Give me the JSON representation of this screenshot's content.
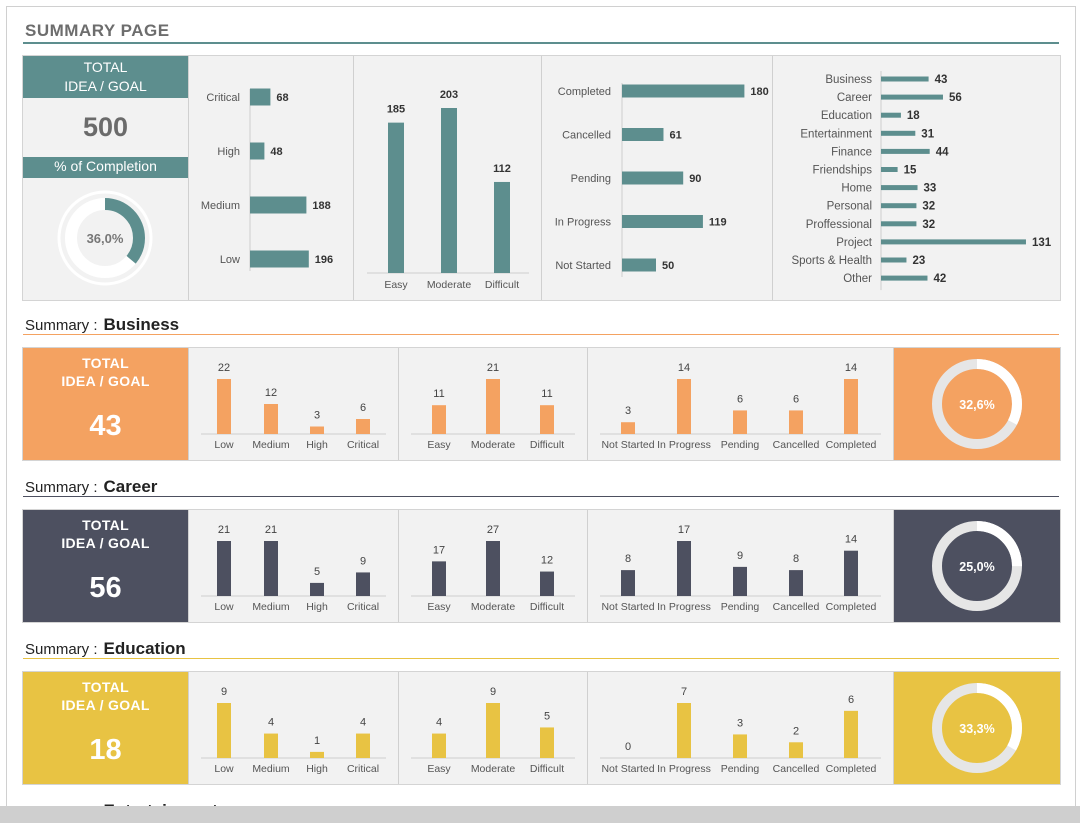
{
  "page_title": "SUMMARY PAGE",
  "overview": {
    "total_label_1": "TOTAL",
    "total_label_2": "IDEA / GOAL",
    "total_value": "500",
    "completion_label": "% of Completion",
    "completion_text": "36,0%",
    "completion_fraction": 0.36
  },
  "summary_prefix": "Summary :",
  "colors": {
    "teal": "#5d8e8e",
    "orange": "#f4a261",
    "slate": "#4d5060",
    "yellow": "#e8c343"
  },
  "chart_data": [
    {
      "type": "bar",
      "orientation": "horizontal",
      "categories": [
        "Critical",
        "High",
        "Medium",
        "Low"
      ],
      "values": [
        68,
        48,
        188,
        196
      ]
    },
    {
      "type": "bar",
      "categories": [
        "Easy",
        "Moderate",
        "Difficult"
      ],
      "values": [
        185,
        203,
        112
      ]
    },
    {
      "type": "bar",
      "orientation": "horizontal",
      "categories": [
        "Completed",
        "Cancelled",
        "Pending",
        "In Progress",
        "Not Started"
      ],
      "values": [
        180,
        61,
        90,
        119,
        50
      ]
    },
    {
      "type": "bar",
      "orientation": "horizontal",
      "categories": [
        "Business",
        "Career",
        "Education",
        "Entertainment",
        "Finance",
        "Friendships",
        "Home",
        "Personal",
        "Proffessional",
        "Project",
        "Sports & Health",
        "Other"
      ],
      "values": [
        43,
        56,
        18,
        31,
        44,
        15,
        33,
        32,
        32,
        131,
        23,
        42
      ]
    }
  ],
  "categories": [
    {
      "name": "Business",
      "total_label_1": "TOTAL",
      "total_label_2": "IDEA / GOAL",
      "total": "43",
      "color": "#f4a261",
      "completion_text": "32,6%",
      "completion_fraction": 0.326,
      "chart_data": [
        {
          "type": "bar",
          "categories": [
            "Low",
            "Medium",
            "High",
            "Critical"
          ],
          "values": [
            22,
            12,
            3,
            6
          ]
        },
        {
          "type": "bar",
          "categories": [
            "Easy",
            "Moderate",
            "Difficult"
          ],
          "values": [
            11,
            21,
            11
          ]
        },
        {
          "type": "bar",
          "categories": [
            "Not Started",
            "In Progress",
            "Pending",
            "Cancelled",
            "Completed"
          ],
          "values": [
            3,
            14,
            6,
            6,
            14
          ]
        }
      ]
    },
    {
      "name": "Career",
      "total_label_1": "TOTAL",
      "total_label_2": "IDEA / GOAL",
      "total": "56",
      "color": "#4d5060",
      "completion_text": "25,0%",
      "completion_fraction": 0.25,
      "chart_data": [
        {
          "type": "bar",
          "categories": [
            "Low",
            "Medium",
            "High",
            "Critical"
          ],
          "values": [
            21,
            21,
            5,
            9
          ]
        },
        {
          "type": "bar",
          "categories": [
            "Easy",
            "Moderate",
            "Difficult"
          ],
          "values": [
            17,
            27,
            12
          ]
        },
        {
          "type": "bar",
          "categories": [
            "Not Started",
            "In Progress",
            "Pending",
            "Cancelled",
            "Completed"
          ],
          "values": [
            8,
            17,
            9,
            8,
            14
          ]
        }
      ]
    },
    {
      "name": "Education",
      "total_label_1": "TOTAL",
      "total_label_2": "IDEA / GOAL",
      "total": "18",
      "color": "#e8c343",
      "completion_text": "33,3%",
      "completion_fraction": 0.333,
      "chart_data": [
        {
          "type": "bar",
          "categories": [
            "Low",
            "Medium",
            "High",
            "Critical"
          ],
          "values": [
            9,
            4,
            1,
            4
          ]
        },
        {
          "type": "bar",
          "categories": [
            "Easy",
            "Moderate",
            "Difficult"
          ],
          "values": [
            4,
            9,
            5
          ]
        },
        {
          "type": "bar",
          "categories": [
            "Not Started",
            "In Progress",
            "Pending",
            "Cancelled",
            "Completed"
          ],
          "values": [
            0,
            7,
            3,
            2,
            6
          ]
        }
      ]
    },
    {
      "name": "Entertainment"
    }
  ]
}
